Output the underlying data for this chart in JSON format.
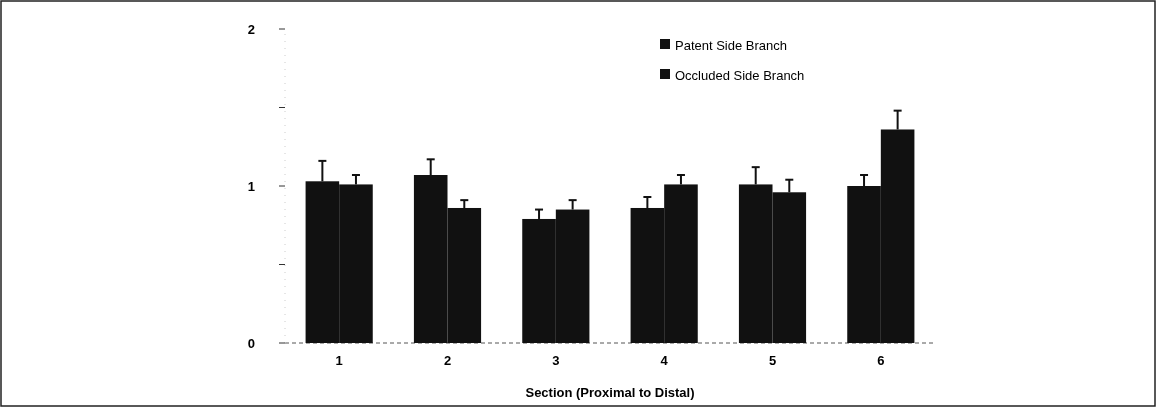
{
  "chart_data": {
    "type": "bar",
    "xlabel": "Section (Proximal to Distal)",
    "categories": [
      "1",
      "2",
      "3",
      "4",
      "5",
      "6"
    ],
    "series": [
      {
        "name": "Patent Side Branch",
        "color": "#111111",
        "values": [
          1.03,
          1.07,
          0.79,
          0.86,
          1.01,
          1.0
        ],
        "errors": [
          [
            1.03,
            1.16
          ],
          [
            1.07,
            1.17
          ],
          [
            0.79,
            0.85
          ],
          [
            0.86,
            0.93
          ],
          [
            1.01,
            1.12
          ],
          [
            1.0,
            1.07
          ]
        ]
      },
      {
        "name": "Occluded Side Branch",
        "color": "#111111",
        "values": [
          1.01,
          0.86,
          0.85,
          1.01,
          0.96,
          1.36
        ],
        "errors": [
          [
            1.01,
            1.07
          ],
          [
            0.86,
            0.91
          ],
          [
            0.85,
            0.91
          ],
          [
            1.01,
            1.07
          ],
          [
            0.96,
            1.04
          ],
          [
            1.36,
            1.48
          ]
        ]
      }
    ],
    "ylim": [
      0,
      2
    ],
    "yticks": [
      0,
      {
        "value": 0.5,
        "label": null
      },
      1,
      {
        "value": 1.5,
        "label": null
      },
      2
    ],
    "legend": "top right"
  }
}
